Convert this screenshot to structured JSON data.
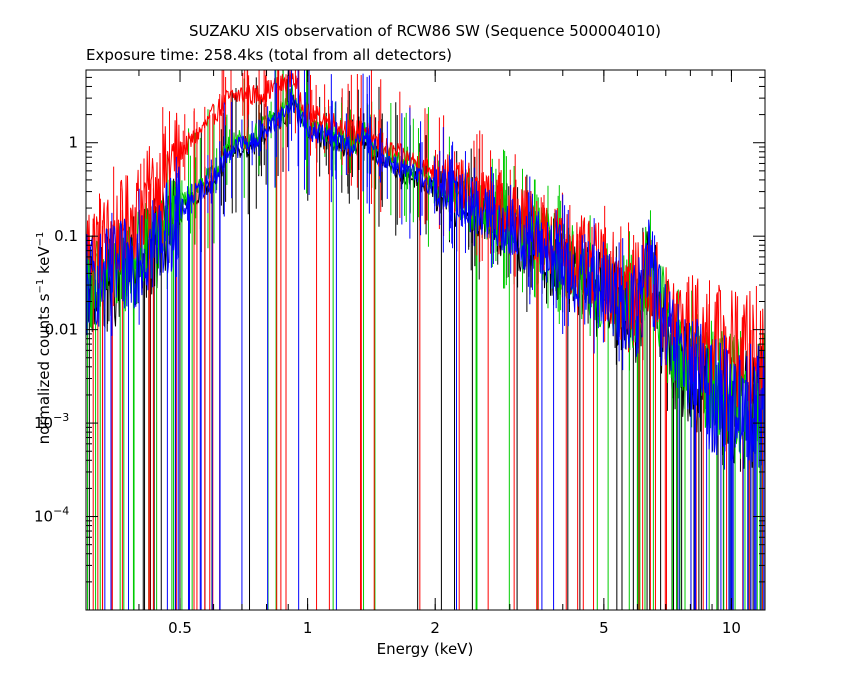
{
  "chart_data": {
    "type": "line",
    "title": "SUZAKU XIS observation of RCW86 SW (Sequence 500004010)",
    "subtitle": "Exposure time: 258.4ks (total from all detectors)",
    "xlabel": "Energy (keV)",
    "ylabel_parts": [
      "normalized counts s",
      "−1",
      " keV",
      "−1"
    ],
    "xscale": "log",
    "yscale": "log",
    "xlim": [
      0.3,
      12
    ],
    "ylim": [
      1e-05,
      6
    ],
    "grid": false,
    "x_ticks": [
      {
        "value": 0.5,
        "label": "0.5"
      },
      {
        "value": 1,
        "label": "1"
      },
      {
        "value": 2,
        "label": "2"
      },
      {
        "value": 5,
        "label": "5"
      },
      {
        "value": 10,
        "label": "10"
      }
    ],
    "y_ticks": [
      {
        "value": 1,
        "label": "1",
        "sup": ""
      },
      {
        "value": 0.1,
        "label": "0.1",
        "sup": ""
      },
      {
        "value": 0.01,
        "label": "0.01",
        "sup": ""
      },
      {
        "value": 0.001,
        "label": "10",
        "sup": "−3"
      },
      {
        "value": 0.0001,
        "label": "10",
        "sup": "−4"
      }
    ],
    "series": [
      {
        "color": "#ff0000",
        "x": [
          0.3,
          0.35,
          0.4,
          0.45,
          0.5,
          0.55,
          0.6,
          0.65,
          0.7,
          0.75,
          0.8,
          0.85,
          0.9,
          0.92,
          0.95,
          1.0,
          1.1,
          1.2,
          1.3,
          1.35,
          1.4,
          1.5,
          1.7,
          2.0,
          2.5,
          3.0,
          3.5,
          4.0,
          5.0,
          6.0,
          6.4,
          7.0,
          8.0,
          9.0,
          10.0,
          12.0
        ],
        "y": [
          0.08,
          0.1,
          0.2,
          0.4,
          0.8,
          1.2,
          2.0,
          3.0,
          3.3,
          3.2,
          3.6,
          4.0,
          4.5,
          5.5,
          3.6,
          2.0,
          1.8,
          1.5,
          1.3,
          1.5,
          1.2,
          0.9,
          0.7,
          0.5,
          0.28,
          0.18,
          0.12,
          0.08,
          0.04,
          0.025,
          0.04,
          0.015,
          0.01,
          0.008,
          0.006,
          0.005
        ]
      },
      {
        "color": "#00cc00",
        "x": [
          0.3,
          0.35,
          0.4,
          0.45,
          0.5,
          0.55,
          0.6,
          0.65,
          0.7,
          0.75,
          0.8,
          0.85,
          0.9,
          0.92,
          0.95,
          1.0,
          1.1,
          1.2,
          1.3,
          1.35,
          1.4,
          1.5,
          1.7,
          2.0,
          2.5,
          3.0,
          3.5,
          4.0,
          5.0,
          6.0,
          6.4,
          7.0,
          8.0,
          9.0,
          10.0,
          12.0
        ],
        "y": [
          0.03,
          0.04,
          0.06,
          0.12,
          0.2,
          0.35,
          0.45,
          0.9,
          1.1,
          1.2,
          1.6,
          2.0,
          2.6,
          3.2,
          2.2,
          1.5,
          1.3,
          1.1,
          1.0,
          1.4,
          1.0,
          0.75,
          0.55,
          0.4,
          0.22,
          0.14,
          0.09,
          0.06,
          0.03,
          0.018,
          0.05,
          0.01,
          0.005,
          0.003,
          0.002,
          0.002
        ]
      },
      {
        "color": "#0000ff",
        "x": [
          0.3,
          0.35,
          0.4,
          0.45,
          0.5,
          0.55,
          0.6,
          0.65,
          0.7,
          0.75,
          0.8,
          0.85,
          0.9,
          0.92,
          0.95,
          1.0,
          1.1,
          1.2,
          1.3,
          1.35,
          1.4,
          1.5,
          1.7,
          2.0,
          2.5,
          3.0,
          3.5,
          4.0,
          5.0,
          6.0,
          6.4,
          7.0,
          8.0,
          9.0,
          10.0,
          12.0
        ],
        "y": [
          0.03,
          0.04,
          0.06,
          0.1,
          0.18,
          0.3,
          0.4,
          0.8,
          0.95,
          1.0,
          1.4,
          1.8,
          2.3,
          3.0,
          2.0,
          1.4,
          1.2,
          1.0,
          0.9,
          1.3,
          0.95,
          0.7,
          0.5,
          0.35,
          0.2,
          0.12,
          0.08,
          0.05,
          0.025,
          0.015,
          0.06,
          0.008,
          0.004,
          0.002,
          0.0015,
          0.0015
        ]
      },
      {
        "color": "#000000",
        "x": [
          0.3,
          0.35,
          0.4,
          0.45,
          0.5,
          0.55,
          0.6,
          0.65,
          0.7,
          0.75,
          0.8,
          0.85,
          0.9,
          0.92,
          0.95,
          1.0,
          1.1,
          1.2,
          1.3,
          1.35,
          1.4,
          1.5,
          1.7,
          2.0,
          2.5,
          3.0,
          3.5,
          4.0,
          5.0,
          6.0,
          6.4,
          7.0,
          8.0,
          9.0,
          10.0,
          12.0
        ],
        "y": [
          0.03,
          0.035,
          0.05,
          0.1,
          0.17,
          0.28,
          0.38,
          0.75,
          0.9,
          0.95,
          1.3,
          1.7,
          2.2,
          2.8,
          1.9,
          1.3,
          1.1,
          0.95,
          0.85,
          1.2,
          0.9,
          0.65,
          0.45,
          0.32,
          0.18,
          0.11,
          0.07,
          0.045,
          0.022,
          0.013,
          0.05,
          0.007,
          0.0035,
          0.002,
          0.0015,
          0.0015
        ]
      }
    ]
  }
}
